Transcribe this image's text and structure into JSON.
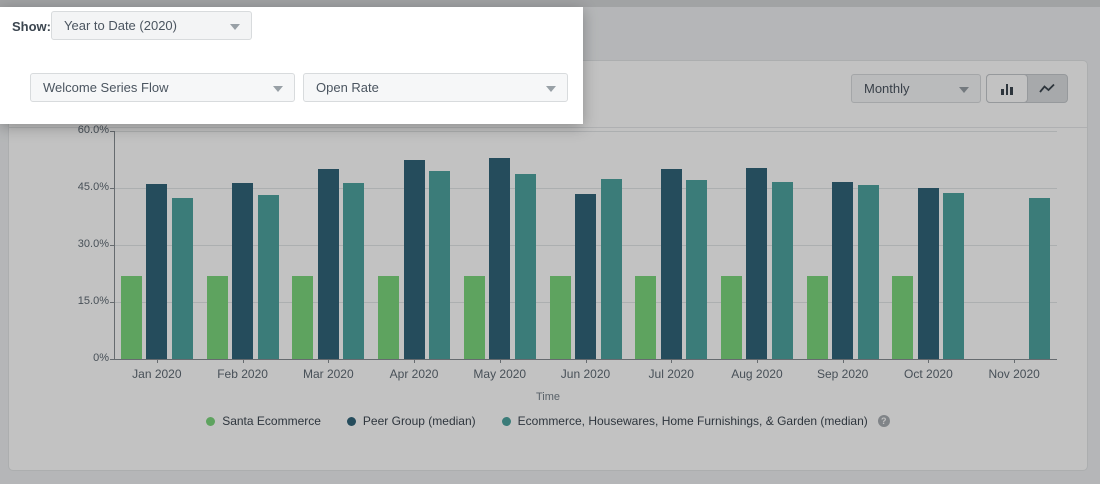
{
  "filters": {
    "show_label": "Show:",
    "show_value": "Year to Date (2020)",
    "flow_value": "Welcome Series Flow",
    "metric_value": "Open Rate"
  },
  "toolbar": {
    "interval_value": "Monthly"
  },
  "chart_data": {
    "type": "bar",
    "title": "",
    "xlabel": "Time",
    "ylabel": "Open Rate",
    "ylim": [
      0,
      60
    ],
    "yticks": [
      0,
      15,
      30,
      45,
      60
    ],
    "ytick_labels": [
      "0%",
      "15.0%",
      "30.0%",
      "45.0%",
      "60.0%"
    ],
    "grid": "horizontal",
    "legend_position": "bottom",
    "categories": [
      "Jan 2020",
      "Feb 2020",
      "Mar 2020",
      "Apr 2020",
      "May 2020",
      "Jun 2020",
      "Jul 2020",
      "Aug 2020",
      "Sep 2020",
      "Oct 2020",
      "Nov 2020"
    ],
    "series": [
      {
        "name": "Santa Ecommerce",
        "color": "#7cd67d",
        "values": [
          21.8,
          21.8,
          21.8,
          21.8,
          21.8,
          21.8,
          21.8,
          21.8,
          21.8,
          21.8,
          null
        ]
      },
      {
        "name": "Peer Group (median)",
        "color": "#31647a",
        "values": [
          46.0,
          46.4,
          50.1,
          52.3,
          52.9,
          43.3,
          50.0,
          50.2,
          46.6,
          45.0,
          null
        ]
      },
      {
        "name": "Ecommerce, Housewares, Home Furnishings, & Garden (median)",
        "color": "#4ea4a0",
        "values": [
          42.4,
          43.1,
          46.4,
          49.4,
          48.7,
          47.3,
          47.0,
          46.6,
          45.7,
          43.7,
          42.4
        ]
      }
    ]
  }
}
